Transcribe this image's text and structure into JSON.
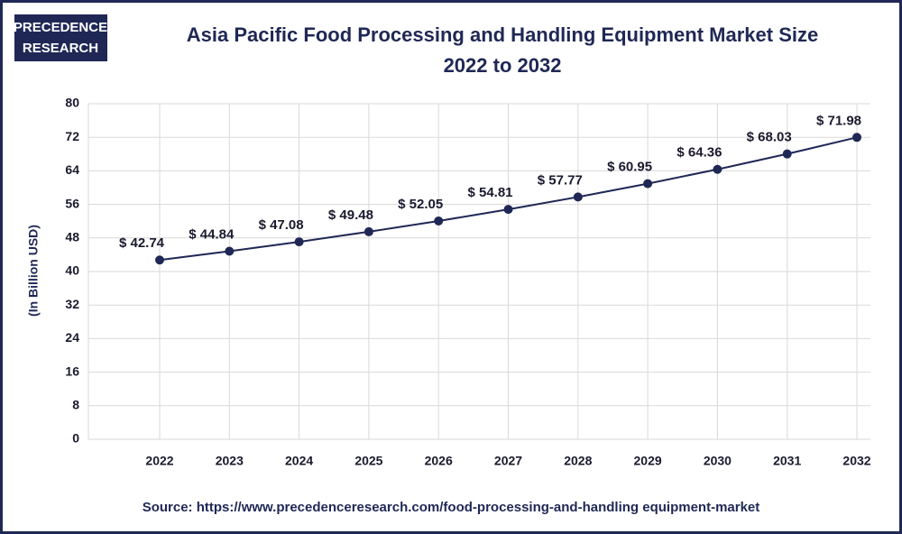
{
  "chart_data": {
    "type": "line",
    "logo": [
      "PRECEDENCE",
      "RESEARCH"
    ],
    "title": "Asia Pacific Food Processing and Handling Equipment Market Size",
    "subtitle": "2022 to 2032",
    "y_label": "(In Billion USD)",
    "source": "Source: https://www.precedenceresearch.com/food-processing-and-handling equipment-market",
    "categories": [
      "2022",
      "2023",
      "2024",
      "2025",
      "2026",
      "2027",
      "2028",
      "2029",
      "2030",
      "2031",
      "2032"
    ],
    "values": [
      42.74,
      44.84,
      47.08,
      49.48,
      52.05,
      54.81,
      57.77,
      60.95,
      64.36,
      68.03,
      71.98
    ],
    "value_labels": [
      "$ 42.74",
      "$ 44.84",
      "$ 47.08",
      "$ 49.48",
      "$ 52.05",
      "$ 54.81",
      "$ 57.77",
      "$ 60.95",
      "$ 64.36",
      "$ 68.03",
      "$ 71.98"
    ],
    "color": "#1f2855",
    "ylim": [
      0,
      80
    ],
    "yticks": [
      0,
      8,
      16,
      24,
      32,
      40,
      48,
      56,
      64,
      72,
      80
    ],
    "grid": true
  }
}
